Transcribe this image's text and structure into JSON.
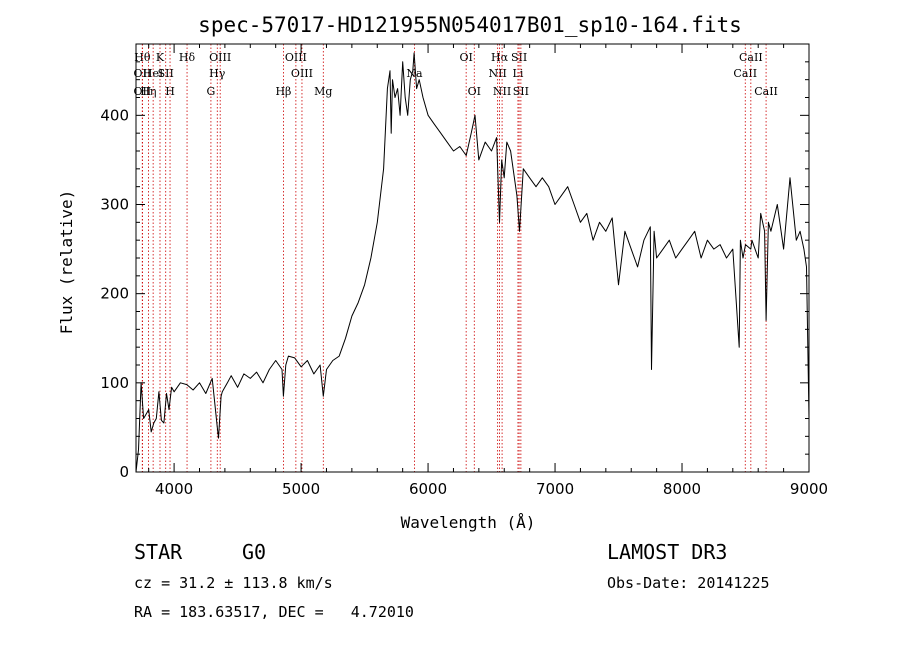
{
  "chart_data": {
    "type": "line",
    "title": "spec-57017-HD121955N054017B01_sp10-164.fits",
    "xlabel": "Wavelength (Å)",
    "ylabel": "Flux (relative)",
    "xlim": [
      3700,
      9000
    ],
    "ylim": [
      0,
      480
    ],
    "xticks": [
      4000,
      5000,
      6000,
      7000,
      8000,
      9000
    ],
    "yticks": [
      0,
      100,
      200,
      300,
      400
    ],
    "series": [
      {
        "name": "flux",
        "x": [
          3700,
          3720,
          3740,
          3760,
          3780,
          3800,
          3820,
          3840,
          3860,
          3880,
          3900,
          3920,
          3940,
          3960,
          3980,
          4000,
          4050,
          4100,
          4150,
          4200,
          4250,
          4300,
          4340,
          4350,
          4370,
          4380,
          4420,
          4450,
          4500,
          4550,
          4600,
          4650,
          4700,
          4750,
          4800,
          4850,
          4861,
          4880,
          4900,
          4950,
          5000,
          5050,
          5100,
          5150,
          5175,
          5200,
          5250,
          5300,
          5350,
          5400,
          5450,
          5500,
          5550,
          5600,
          5650,
          5680,
          5700,
          5710,
          5720,
          5740,
          5760,
          5780,
          5800,
          5820,
          5840,
          5860,
          5880,
          5890,
          5910,
          5930,
          5960,
          6000,
          6050,
          6100,
          6150,
          6200,
          6250,
          6300,
          6340,
          6370,
          6400,
          6450,
          6500,
          6540,
          6563,
          6580,
          6600,
          6620,
          6650,
          6700,
          6720,
          6750,
          6800,
          6850,
          6900,
          6950,
          7000,
          7050,
          7100,
          7150,
          7200,
          7250,
          7300,
          7350,
          7400,
          7450,
          7500,
          7550,
          7600,
          7650,
          7700,
          7750,
          7760,
          7780,
          7800,
          7850,
          7900,
          7950,
          8000,
          8050,
          8100,
          8150,
          8200,
          8250,
          8300,
          8350,
          8400,
          8450,
          8460,
          8480,
          8500,
          8542,
          8550,
          8600,
          8620,
          8650,
          8662,
          8680,
          8700,
          8750,
          8800,
          8850,
          8900,
          8930,
          8960,
          8980,
          9000
        ],
        "values": [
          0,
          25,
          100,
          60,
          65,
          70,
          45,
          55,
          60,
          90,
          58,
          55,
          88,
          70,
          95,
          90,
          100,
          98,
          92,
          100,
          88,
          105,
          50,
          38,
          85,
          90,
          100,
          108,
          95,
          110,
          105,
          112,
          100,
          115,
          125,
          115,
          85,
          120,
          130,
          128,
          118,
          125,
          110,
          120,
          85,
          115,
          125,
          130,
          150,
          175,
          190,
          210,
          240,
          280,
          340,
          430,
          450,
          380,
          440,
          420,
          430,
          400,
          460,
          420,
          400,
          440,
          450,
          470,
          430,
          440,
          420,
          400,
          390,
          380,
          370,
          360,
          365,
          355,
          380,
          400,
          350,
          370,
          360,
          375,
          280,
          350,
          330,
          370,
          360,
          310,
          270,
          340,
          330,
          320,
          330,
          320,
          300,
          310,
          320,
          300,
          280,
          290,
          260,
          280,
          270,
          285,
          210,
          270,
          250,
          230,
          260,
          275,
          115,
          270,
          240,
          250,
          260,
          240,
          250,
          260,
          270,
          240,
          260,
          250,
          255,
          240,
          250,
          140,
          260,
          240,
          255,
          250,
          260,
          240,
          290,
          270,
          170,
          280,
          270,
          300,
          250,
          330,
          260,
          270,
          250,
          230,
          60
        ]
      }
    ],
    "line_markers": [
      {
        "w": 3750,
        "label": "Hθ",
        "row": 0
      },
      {
        "w": 3750,
        "label": "OII",
        "row": 1
      },
      {
        "w": 3750,
        "label": "OII",
        "row": 2
      },
      {
        "w": 3798,
        "label": "Hη",
        "row": 2
      },
      {
        "w": 3835,
        "label": "HeI",
        "row": 1
      },
      {
        "w": 3889,
        "label": "K",
        "row": 0
      },
      {
        "w": 3934,
        "label": "SII",
        "row": 1
      },
      {
        "w": 3968,
        "label": "H",
        "row": 2
      },
      {
        "w": 4102,
        "label": "Hδ",
        "row": 0
      },
      {
        "w": 4290,
        "label": "G",
        "row": 2
      },
      {
        "w": 4340,
        "label": "Hγ",
        "row": 1
      },
      {
        "w": 4363,
        "label": "OIII",
        "row": 0
      },
      {
        "w": 4861,
        "label": "Hβ",
        "row": 2
      },
      {
        "w": 4959,
        "label": "OIII",
        "row": 0
      },
      {
        "w": 5007,
        "label": "OIII",
        "row": 1
      },
      {
        "w": 5175,
        "label": "Mg",
        "row": 2
      },
      {
        "w": 5893,
        "label": "Na",
        "row": 1
      },
      {
        "w": 6300,
        "label": "OI",
        "row": 0
      },
      {
        "w": 6364,
        "label": "OI",
        "row": 2
      },
      {
        "w": 6548,
        "label": "NII",
        "row": 1
      },
      {
        "w": 6563,
        "label": "Hα",
        "row": 0
      },
      {
        "w": 6583,
        "label": "NII",
        "row": 2
      },
      {
        "w": 6708,
        "label": "Li",
        "row": 1
      },
      {
        "w": 6717,
        "label": "SII",
        "row": 0
      },
      {
        "w": 6731,
        "label": "SII",
        "row": 2
      },
      {
        "w": 8498,
        "label": "CaII",
        "row": 1
      },
      {
        "w": 8542,
        "label": "CaII",
        "row": 0
      },
      {
        "w": 8662,
        "label": "CaII",
        "row": 2
      }
    ]
  },
  "info": {
    "class_label": "STAR",
    "subclass": "G0",
    "survey": "LAMOST DR3",
    "cz_text": "cz = 31.2 ± 113.8 km/s",
    "obs_date_text": "Obs-Date: 20141225",
    "radec_text": "RA = 183.63517, DEC =   4.72010"
  },
  "colors": {
    "line": "#000000",
    "marker": "#cc0000",
    "background": "#ffffff"
  }
}
